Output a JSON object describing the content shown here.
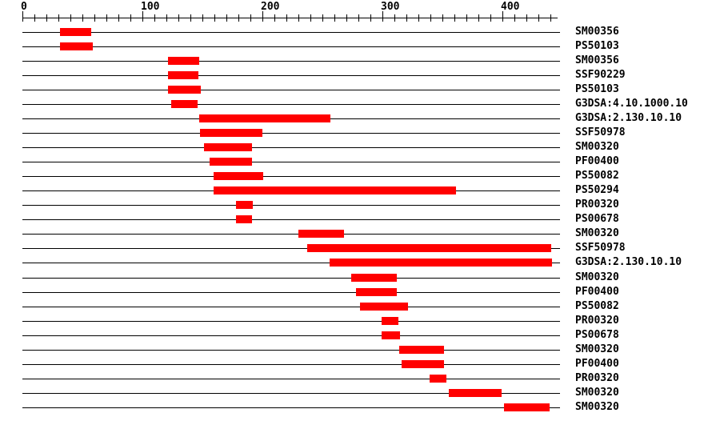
{
  "chart_data": {
    "type": "bar",
    "variant": "protein-signature-track-plot",
    "title": "",
    "xlabel": "",
    "ylabel": "",
    "legend": "none",
    "grid": false,
    "x_axis": {
      "min": 0,
      "max": 448,
      "minor_tick_step": 10,
      "last_minor_tick": 440,
      "major_ticks": [
        {
          "value": 0,
          "label": "0"
        },
        {
          "value": 100,
          "label": "100"
        },
        {
          "value": 200,
          "label": "200"
        },
        {
          "value": 300,
          "label": "300"
        },
        {
          "value": 400,
          "label": "400"
        }
      ]
    },
    "bar_color": "#FF0000",
    "line_color": "#000000",
    "background_color": "#FFFFFF",
    "rows": [
      {
        "label": "SM00356",
        "start": 31,
        "end": 57
      },
      {
        "label": "PS50103",
        "start": 31,
        "end": 58
      },
      {
        "label": "SM00356",
        "start": 121,
        "end": 147
      },
      {
        "label": "SSF90229",
        "start": 121,
        "end": 146
      },
      {
        "label": "PS50103",
        "start": 121,
        "end": 148
      },
      {
        "label": "G3DSA:4.10.1000.10",
        "start": 124,
        "end": 146
      },
      {
        "label": "G3DSA:2.130.10.10",
        "start": 147,
        "end": 256
      },
      {
        "label": "SSF50978",
        "start": 148,
        "end": 200
      },
      {
        "label": "SM00320",
        "start": 151,
        "end": 191
      },
      {
        "label": "PF00400",
        "start": 156,
        "end": 191
      },
      {
        "label": "PS50082",
        "start": 159,
        "end": 200
      },
      {
        "label": "PS50294",
        "start": 159,
        "end": 361
      },
      {
        "label": "PR00320",
        "start": 178,
        "end": 192
      },
      {
        "label": "PS00678",
        "start": 178,
        "end": 191
      },
      {
        "label": "SM00320",
        "start": 230,
        "end": 268
      },
      {
        "label": "SSF50978",
        "start": 237,
        "end": 440
      },
      {
        "label": "G3DSA:2.130.10.10",
        "start": 256,
        "end": 441
      },
      {
        "label": "SM00320",
        "start": 274,
        "end": 312
      },
      {
        "label": "PF00400",
        "start": 278,
        "end": 312
      },
      {
        "label": "PS50082",
        "start": 281,
        "end": 321
      },
      {
        "label": "PR00320",
        "start": 299,
        "end": 313
      },
      {
        "label": "PS00678",
        "start": 299,
        "end": 314
      },
      {
        "label": "SM00320",
        "start": 314,
        "end": 351
      },
      {
        "label": "PF00400",
        "start": 316,
        "end": 351
      },
      {
        "label": "PR00320",
        "start": 339,
        "end": 353
      },
      {
        "label": "SM00320",
        "start": 355,
        "end": 399
      },
      {
        "label": "SM00320",
        "start": 401,
        "end": 439
      }
    ]
  }
}
